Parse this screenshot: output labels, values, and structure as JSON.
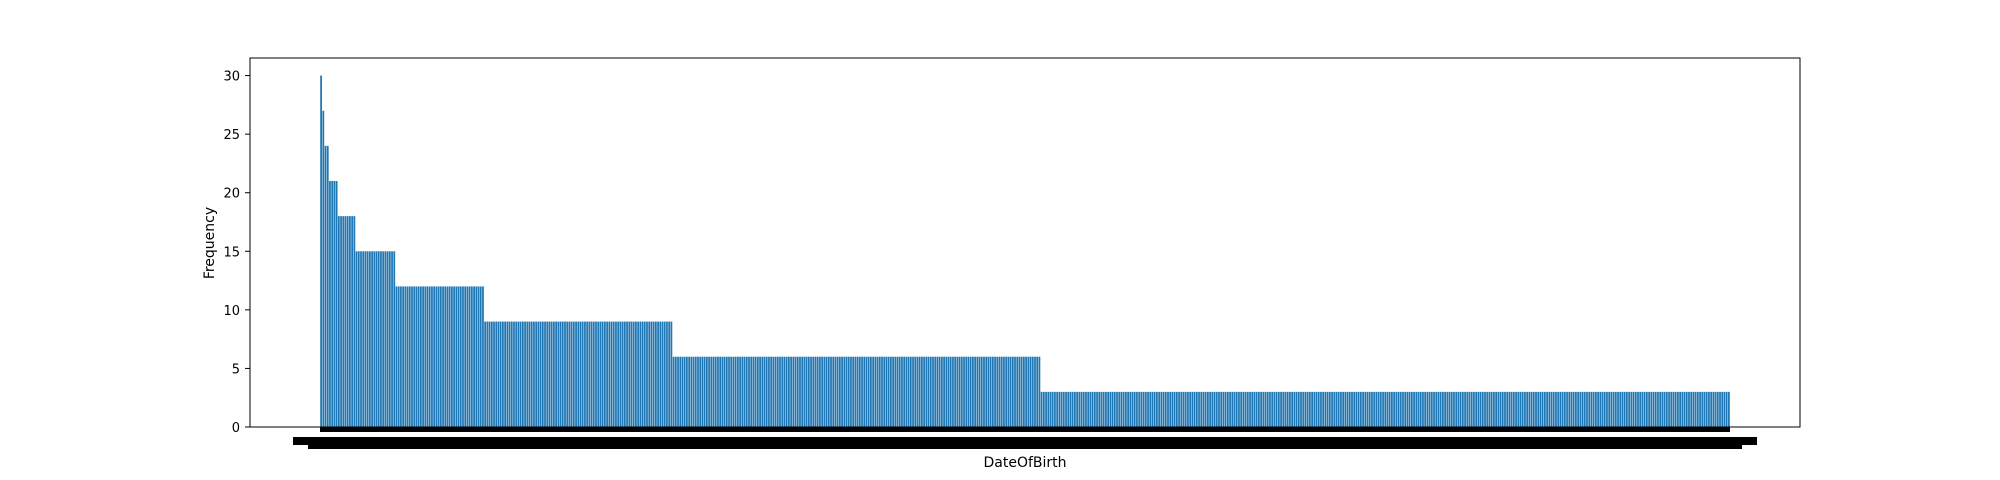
{
  "chart_data": {
    "type": "bar",
    "xlabel": "DateOfBirth",
    "ylabel": "Frequency",
    "ylim": [
      0,
      31.5
    ],
    "yticks": [
      0,
      5,
      10,
      15,
      20,
      25,
      30
    ],
    "bar_color": "#1f77b4",
    "grid": false,
    "groups": [
      {
        "value": 30,
        "count": 1
      },
      {
        "value": 27,
        "count": 1
      },
      {
        "value": 24,
        "count": 2
      },
      {
        "value": 21,
        "count": 4
      },
      {
        "value": 18,
        "count": 8
      },
      {
        "value": 15,
        "count": 18
      },
      {
        "value": 12,
        "count": 40
      },
      {
        "value": 9,
        "count": 85
      },
      {
        "value": 6,
        "count": 166
      },
      {
        "value": 3,
        "count": 311
      }
    ]
  }
}
